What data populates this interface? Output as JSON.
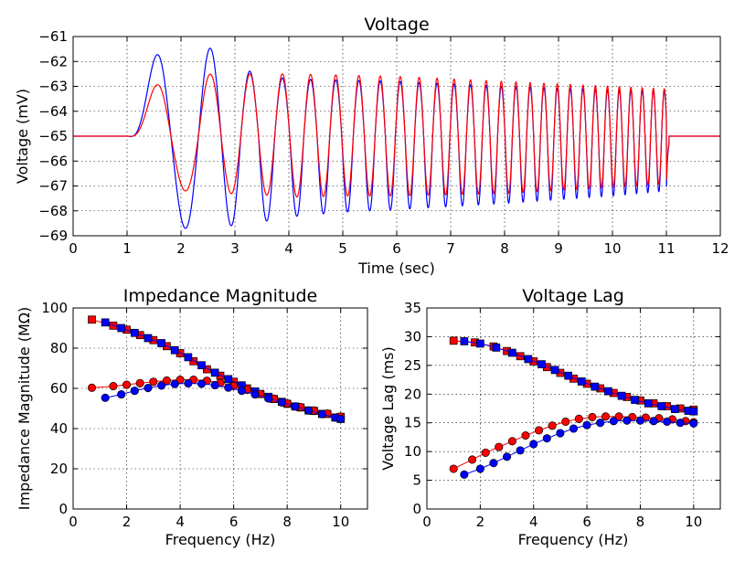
{
  "chart_data": [
    {
      "id": "voltage",
      "type": "line",
      "title": "Voltage",
      "xlabel": "Time (sec)",
      "ylabel": "Voltage (mV)",
      "xlim": [
        0,
        12
      ],
      "ylim": [
        -69,
        -61
      ],
      "xticks": [
        "0",
        "1",
        "2",
        "3",
        "4",
        "5",
        "6",
        "7",
        "8",
        "9",
        "10",
        "11",
        "12"
      ],
      "yticks": [
        "-69",
        "-68",
        "-67",
        "-66",
        "-65",
        "-64",
        "-63",
        "-62",
        "-61"
      ],
      "grid": true,
      "series": [
        {
          "color": "#0000ff",
          "baseline": -65,
          "chirp_start": 1,
          "chirp_end": 11,
          "freq_start_hz": 0.5,
          "freq_end_hz": 5,
          "positive_peaks": [
            [
              1.73,
              -61.2
            ],
            [
              2.63,
              -61.5
            ],
            [
              3.13,
              -62.3
            ],
            [
              3.6,
              -62.6
            ],
            [
              4.02,
              -62.7
            ],
            [
              5,
              -62.75
            ],
            [
              6,
              -62.8
            ],
            [
              8,
              -63
            ],
            [
              10,
              -63.15
            ],
            [
              11,
              -63.2
            ]
          ],
          "negative_troughs": [
            [
              2.25,
              -68.7
            ],
            [
              2.9,
              -68.6
            ],
            [
              3.4,
              -68.5
            ],
            [
              3.8,
              -68.3
            ],
            [
              4.2,
              -68.2
            ],
            [
              5,
              -68.05
            ],
            [
              6,
              -67.95
            ],
            [
              8,
              -67.7
            ],
            [
              10,
              -67.4
            ],
            [
              11,
              -67.2
            ]
          ]
        },
        {
          "color": "#ff0000",
          "baseline": -65,
          "chirp_start": 1,
          "chirp_end": 11,
          "freq_start_hz": 0.5,
          "freq_end_hz": 5,
          "positive_peaks": [
            [
              1.73,
              -62.6
            ],
            [
              2.63,
              -62.5
            ],
            [
              3.13,
              -62.5
            ],
            [
              3.6,
              -62.5
            ],
            [
              4.02,
              -62.5
            ],
            [
              5,
              -62.55
            ],
            [
              6,
              -62.6
            ],
            [
              8,
              -62.8
            ],
            [
              10,
              -63
            ],
            [
              11,
              -63.1
            ]
          ],
          "negative_troughs": [
            [
              2.25,
              -67.2
            ],
            [
              2.9,
              -67.3
            ],
            [
              3.4,
              -67.35
            ],
            [
              3.8,
              -67.4
            ],
            [
              4.2,
              -67.45
            ],
            [
              5,
              -67.4
            ],
            [
              6,
              -67.4
            ],
            [
              8,
              -67.3
            ],
            [
              10,
              -67.05
            ],
            [
              11,
              -66.9
            ]
          ]
        }
      ]
    },
    {
      "id": "impedance",
      "type": "scatter",
      "title": "Impedance Magnitude",
      "xlabel": "Frequency (Hz)",
      "ylabel": "Impedance Magnitude (MΩ)",
      "xlim": [
        0,
        11
      ],
      "ylim": [
        0,
        100
      ],
      "xticks": [
        "0",
        "2",
        "4",
        "6",
        "8",
        "10"
      ],
      "yticks": [
        "0",
        "20",
        "40",
        "60",
        "80",
        "100"
      ],
      "grid": true,
      "series": [
        {
          "color": "#ff0000",
          "marker": "square",
          "points": [
            [
              0.7,
              94.2
            ],
            [
              1.5,
              91.2
            ],
            [
              2.0,
              89.2
            ],
            [
              2.5,
              86.5
            ],
            [
              3.0,
              84
            ],
            [
              3.5,
              81
            ],
            [
              4.0,
              77.5
            ],
            [
              4.5,
              73.5
            ],
            [
              5.0,
              69.5
            ],
            [
              5.5,
              66.3
            ],
            [
              6.0,
              63.3
            ],
            [
              6.5,
              60
            ],
            [
              7.0,
              57.2
            ],
            [
              7.5,
              54.7
            ],
            [
              8.0,
              52.3
            ],
            [
              8.5,
              50.5
            ],
            [
              9.0,
              48.8
            ],
            [
              9.5,
              47.3
            ],
            [
              10.0,
              45.8
            ]
          ]
        },
        {
          "color": "#0000ff",
          "marker": "square",
          "points": [
            [
              1.2,
              92.8
            ],
            [
              1.8,
              90
            ],
            [
              2.3,
              87.6
            ],
            [
              2.8,
              85
            ],
            [
              3.3,
              82.5
            ],
            [
              3.8,
              79
            ],
            [
              4.3,
              75.5
            ],
            [
              4.8,
              71.5
            ],
            [
              5.3,
              67.8
            ],
            [
              5.8,
              64.6
            ],
            [
              6.3,
              61.5
            ],
            [
              6.8,
              58.5
            ],
            [
              7.3,
              55.8
            ],
            [
              7.8,
              53.3
            ],
            [
              8.3,
              51
            ],
            [
              8.8,
              49
            ],
            [
              9.3,
              47.3
            ],
            [
              9.8,
              45.5
            ],
            [
              10.0,
              44.8
            ]
          ]
        },
        {
          "color": "#ff0000",
          "marker": "circle",
          "points": [
            [
              0.7,
              60.3
            ],
            [
              1.5,
              61.1
            ],
            [
              2.0,
              61.8
            ],
            [
              2.5,
              62.6
            ],
            [
              3.0,
              63.3
            ],
            [
              3.5,
              63.9
            ],
            [
              4.0,
              64.3
            ],
            [
              4.5,
              64.3
            ],
            [
              5.0,
              63.8
            ],
            [
              5.5,
              62.7
            ],
            [
              6.0,
              61.2
            ],
            [
              6.5,
              59.2
            ],
            [
              7.0,
              57.2
            ],
            [
              7.5,
              54.9
            ],
            [
              8.0,
              52.6
            ],
            [
              8.5,
              50.7
            ],
            [
              9.0,
              49
            ],
            [
              9.5,
              47.5
            ],
            [
              10.0,
              46
            ]
          ]
        },
        {
          "color": "#0000ff",
          "marker": "circle",
          "points": [
            [
              1.2,
              55.3
            ],
            [
              1.8,
              57
            ],
            [
              2.3,
              58.8
            ],
            [
              2.8,
              60.2
            ],
            [
              3.3,
              61.4
            ],
            [
              3.8,
              62.2
            ],
            [
              4.3,
              62.5
            ],
            [
              4.8,
              62.3
            ],
            [
              5.3,
              61.6
            ],
            [
              5.8,
              60.4
            ],
            [
              6.3,
              58.8
            ],
            [
              6.8,
              57
            ],
            [
              7.3,
              55
            ],
            [
              7.8,
              53
            ],
            [
              8.3,
              51
            ],
            [
              8.8,
              49
            ],
            [
              9.3,
              47.2
            ],
            [
              9.8,
              45.5
            ],
            [
              10.0,
              44.8
            ]
          ]
        }
      ]
    },
    {
      "id": "lag",
      "type": "scatter",
      "title": "Voltage Lag",
      "xlabel": "Frequency (Hz)",
      "ylabel": "Voltage Lag (ms)",
      "xlim": [
        0,
        11
      ],
      "ylim": [
        0,
        35
      ],
      "xticks": [
        "0",
        "2",
        "4",
        "6",
        "8",
        "10"
      ],
      "yticks": [
        "0",
        "5",
        "10",
        "15",
        "20",
        "25",
        "30",
        "35"
      ],
      "grid": true,
      "series": [
        {
          "color": "#ff0000",
          "marker": "square",
          "points": [
            [
              1.0,
              29.3
            ],
            [
              1.8,
              29
            ],
            [
              2.5,
              28.3
            ],
            [
              3.0,
              27.5
            ],
            [
              3.5,
              26.6
            ],
            [
              4.0,
              25.7
            ],
            [
              4.5,
              24.7
            ],
            [
              5.0,
              23.7
            ],
            [
              5.5,
              22.7
            ],
            [
              6.0,
              21.8
            ],
            [
              6.5,
              21
            ],
            [
              7.0,
              20.2
            ],
            [
              7.5,
              19.5
            ],
            [
              8.0,
              18.9
            ],
            [
              8.5,
              18.4
            ],
            [
              9.0,
              17.9
            ],
            [
              9.5,
              17.5
            ],
            [
              10.0,
              17.3
            ]
          ]
        },
        {
          "color": "#0000ff",
          "marker": "square",
          "points": [
            [
              1.4,
              29.2
            ],
            [
              2.0,
              28.8
            ],
            [
              2.6,
              28.1
            ],
            [
              3.2,
              27.2
            ],
            [
              3.8,
              26.1
            ],
            [
              4.3,
              25.2
            ],
            [
              4.8,
              24.2
            ],
            [
              5.3,
              23.2
            ],
            [
              5.8,
              22.2
            ],
            [
              6.3,
              21.3
            ],
            [
              6.8,
              20.5
            ],
            [
              7.3,
              19.7
            ],
            [
              7.8,
              19
            ],
            [
              8.3,
              18.4
            ],
            [
              8.8,
              17.9
            ],
            [
              9.3,
              17.4
            ],
            [
              9.8,
              17.1
            ],
            [
              10.0,
              17
            ]
          ]
        },
        {
          "color": "#ff0000",
          "marker": "circle",
          "points": [
            [
              1.0,
              7
            ],
            [
              1.7,
              8.6
            ],
            [
              2.2,
              9.8
            ],
            [
              2.7,
              10.8
            ],
            [
              3.2,
              11.8
            ],
            [
              3.7,
              12.8
            ],
            [
              4.2,
              13.7
            ],
            [
              4.7,
              14.5
            ],
            [
              5.2,
              15.2
            ],
            [
              5.7,
              15.7
            ],
            [
              6.2,
              16
            ],
            [
              6.7,
              16.1
            ],
            [
              7.2,
              16.1
            ],
            [
              7.7,
              16
            ],
            [
              8.2,
              15.9
            ],
            [
              8.7,
              15.8
            ],
            [
              9.2,
              15.6
            ],
            [
              9.7,
              15.3
            ],
            [
              10.0,
              15.1
            ]
          ]
        },
        {
          "color": "#0000ff",
          "marker": "circle",
          "points": [
            [
              1.4,
              6
            ],
            [
              2.0,
              7
            ],
            [
              2.5,
              8
            ],
            [
              3.0,
              9.1
            ],
            [
              3.5,
              10.2
            ],
            [
              4.0,
              11.3
            ],
            [
              4.5,
              12.3
            ],
            [
              5.0,
              13.2
            ],
            [
              5.5,
              14
            ],
            [
              6.0,
              14.6
            ],
            [
              6.5,
              15
            ],
            [
              7.0,
              15.3
            ],
            [
              7.5,
              15.4
            ],
            [
              8.0,
              15.4
            ],
            [
              8.5,
              15.3
            ],
            [
              9.0,
              15.2
            ],
            [
              9.5,
              15
            ],
            [
              10.0,
              14.9
            ]
          ]
        }
      ]
    }
  ]
}
